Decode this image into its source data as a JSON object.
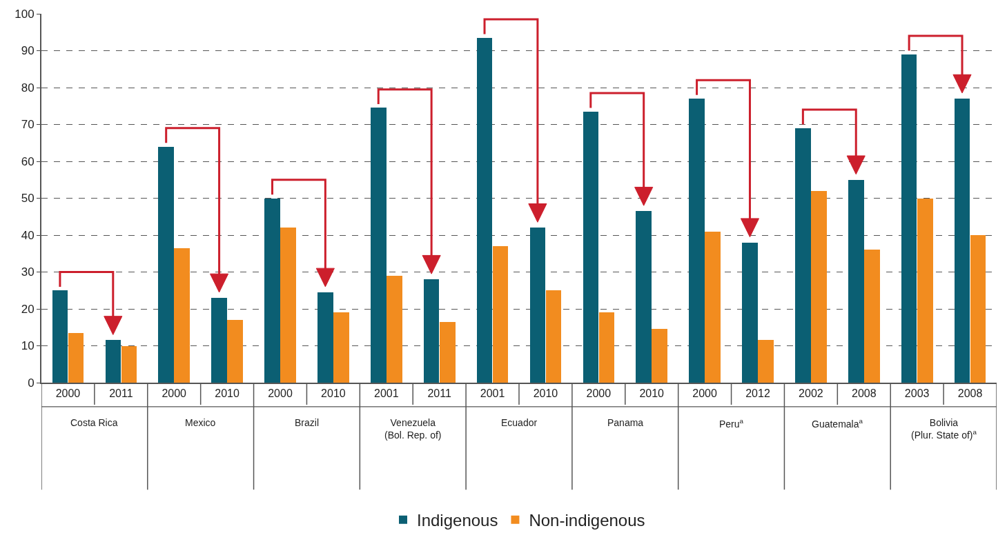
{
  "chart_data": {
    "type": "bar",
    "categories": [
      "2000",
      "2011",
      "2000",
      "2010",
      "2000",
      "2010",
      "2001",
      "2011",
      "2001",
      "2010",
      "2000",
      "2010",
      "2000",
      "2012",
      "2002",
      "2008",
      "2003",
      "2008"
    ],
    "series": [
      {
        "name": "Indigenous",
        "color": "#0b5f73",
        "values": [
          25,
          11.5,
          64,
          23,
          50,
          24.5,
          74.5,
          28,
          93.5,
          42,
          73.5,
          46.5,
          77,
          38,
          69,
          55,
          89,
          77
        ]
      },
      {
        "name": "Non-indigenous",
        "color": "#f28c1f",
        "values": [
          13.5,
          10,
          36.5,
          17,
          42,
          19,
          29,
          16.5,
          37,
          25,
          19,
          14.5,
          41,
          11.5,
          52,
          36,
          50,
          40
        ]
      }
    ],
    "annotations": [
      "Costa Rica",
      "Mexico",
      "Brazil",
      "Venezuela\n(Bol. Rep. of)",
      "Ecuador",
      "Panama",
      "Peru$^{a}$",
      "Guatemala$^{a}$",
      "Bolivia\n(Plur. State of)$^{a}$"
    ],
    "ylim": [
      0,
      100
    ],
    "yticks": [
      0,
      10,
      20,
      30,
      40,
      50,
      60,
      70,
      80,
      90,
      100
    ],
    "grid": "y",
    "legend": "bottom"
  }
}
